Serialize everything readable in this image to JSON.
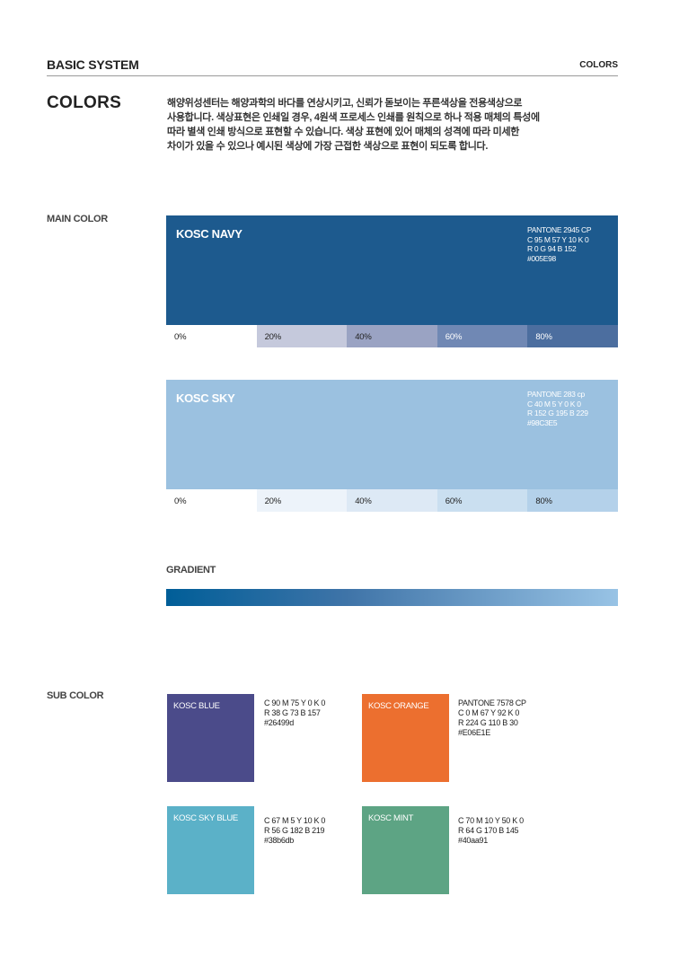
{
  "header": {
    "section": "BASIC SYSTEM",
    "page": "COLORS"
  },
  "title": "COLORS",
  "intro": [
    "해양위성센터는 해양과학의 바다를 연상시키고, 신뢰가 돋보이는 푸른색상을 전용색상으로",
    "사용합니다. 색상표현은 인쇄일 경우, 4원색 프로세스 인쇄를 원칙으로 하나 적용 매체의 특성에",
    "따라 별색 인쇄 방식으로 표현할 수 있습니다. 색상 표현에 있어 매체의 성격에 따라 미세한",
    "차이가 있을 수 있으나 예시된 색상에 가장 근접한 색상으로 표현이 되도록 합니다."
  ],
  "main_color": {
    "label": "MAIN COLOR",
    "swatches": [
      {
        "name": "KOSC NAVY",
        "color": "#1d5a8e",
        "spec": [
          "PANTONE 2945 CP",
          "C 95 M 57 Y 10 K 0",
          "R 0 G 94 B 152",
          "#005E98"
        ],
        "tints": [
          {
            "label": "0%",
            "color": "#ffffff"
          },
          {
            "label": "20%",
            "color": "#c5c9dc"
          },
          {
            "label": "40%",
            "color": "#9aa3c3"
          },
          {
            "label": "60%",
            "color": "#7088b4"
          },
          {
            "label": "80%",
            "color": "#4c6e9f"
          }
        ]
      },
      {
        "name": "KOSC SKY",
        "color": "#9bc1e0",
        "spec": [
          "PANTONE 283 cp",
          "C 40 M 5 Y 0 K 0",
          "R 152 G 195 B 229",
          "#98C3E5"
        ],
        "tints": [
          {
            "label": "0%",
            "color": "#ffffff"
          },
          {
            "label": "20%",
            "color": "#edf3fa"
          },
          {
            "label": "40%",
            "color": "#dde9f5"
          },
          {
            "label": "60%",
            "color": "#cadff0"
          },
          {
            "label": "80%",
            "color": "#b4d1ea"
          }
        ]
      }
    ]
  },
  "gradient": {
    "label": "GRADIENT"
  },
  "sub_color": {
    "label": "SUB COLOR",
    "items": [
      {
        "name": "KOSC BLUE",
        "color": "#4b4b8a",
        "spec": [
          "C 90 M 75 Y 0 K 0",
          "R 38 G 73 B 157",
          "#26499d"
        ]
      },
      {
        "name": "KOSC ORANGE",
        "color": "#ec6f2f",
        "spec": [
          "PANTONE 7578 CP",
          "C 0 M 67 Y 92 K 0",
          "R 224 G 110 B 30",
          "#E06E1E"
        ]
      },
      {
        "name": "KOSC SKY BLUE",
        "color": "#5bb1c8",
        "spec": [
          "C 67 M 5 Y 10 K 0",
          "R 56 G 182 B 219",
          "#38b6db"
        ]
      },
      {
        "name": "KOSC MINT",
        "color": "#5da484",
        "spec": [
          "C 70 M 10 Y 50 K 0",
          "R 64 G 170 B 145",
          "#40aa91"
        ]
      }
    ]
  }
}
